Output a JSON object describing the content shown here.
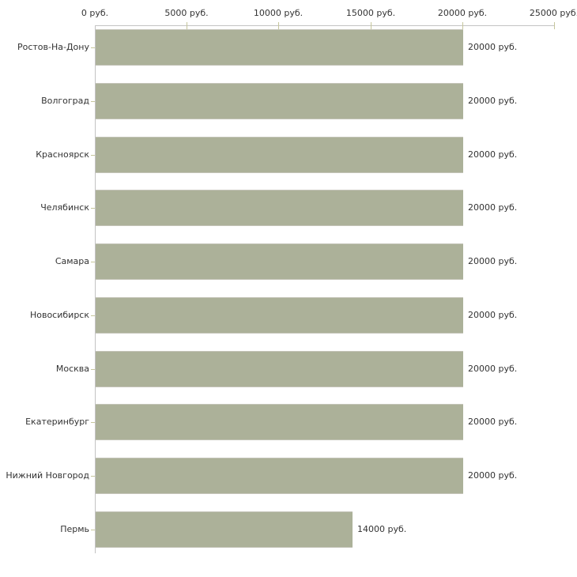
{
  "chart_data": {
    "type": "bar",
    "orientation": "horizontal",
    "title": "",
    "xlabel": "",
    "ylabel": "",
    "unit": "руб.",
    "xlim": [
      0,
      25000
    ],
    "grid": false,
    "legend": "none",
    "categories": [
      "Ростов-На-Дону",
      "Волгоград",
      "Красноярск",
      "Челябинск",
      "Самара",
      "Новосибирск",
      "Москва",
      "Екатеринбург",
      "Нижний Новгород",
      "Пермь"
    ],
    "values": [
      20000,
      20000,
      20000,
      20000,
      20000,
      20000,
      20000,
      20000,
      20000,
      14000
    ],
    "value_labels": [
      "20000 руб.",
      "20000 руб.",
      "20000 руб.",
      "20000 руб.",
      "20000 руб.",
      "20000 руб.",
      "20000 руб.",
      "20000 руб.",
      "20000 руб.",
      "14000 руб."
    ],
    "x_ticks": [
      0,
      5000,
      10000,
      15000,
      20000,
      25000
    ],
    "x_tick_labels": [
      "0 руб.",
      "5000 руб.",
      "10000 руб.",
      "15000 руб.",
      "20000 руб.",
      "25000 руб."
    ],
    "colors": {
      "bar_fill": "#acb199",
      "bar_edge": "#c4c4b8",
      "axis_line": "#c3c3c3",
      "tick_mark": "#c6c69c",
      "text": "#333333",
      "background": "#ffffff"
    }
  }
}
